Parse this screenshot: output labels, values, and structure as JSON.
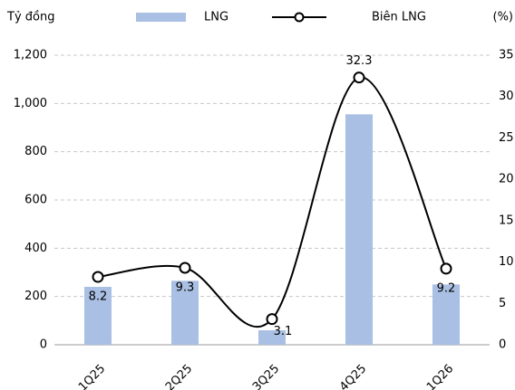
{
  "chart_data": {
    "type": "bar-line",
    "y_label": "Tỷ đồng",
    "y2_label": "(%)",
    "categories": [
      "1Q25",
      "2Q25",
      "3Q25",
      "4Q25",
      "1Q26"
    ],
    "series": [
      {
        "name": "LNG",
        "type": "bar",
        "color": "#a9bfe3",
        "values": [
          240,
          265,
          60,
          955,
          250
        ]
      },
      {
        "name": "Biên LNG",
        "type": "line",
        "axis": "y2",
        "color": "#000000",
        "values": [
          8.2,
          9.3,
          3.1,
          32.3,
          9.2
        ]
      }
    ],
    "ylim": [
      0,
      1200
    ],
    "yticks": [
      0,
      200,
      400,
      600,
      800,
      {
        "value": 1000,
        "label": "1,000"
      },
      {
        "value": 1200,
        "label": "1,200"
      }
    ],
    "y2lim": [
      0,
      35
    ],
    "y2ticks": [
      0,
      5,
      10,
      15,
      20,
      25,
      30,
      35
    ],
    "grid": true
  }
}
